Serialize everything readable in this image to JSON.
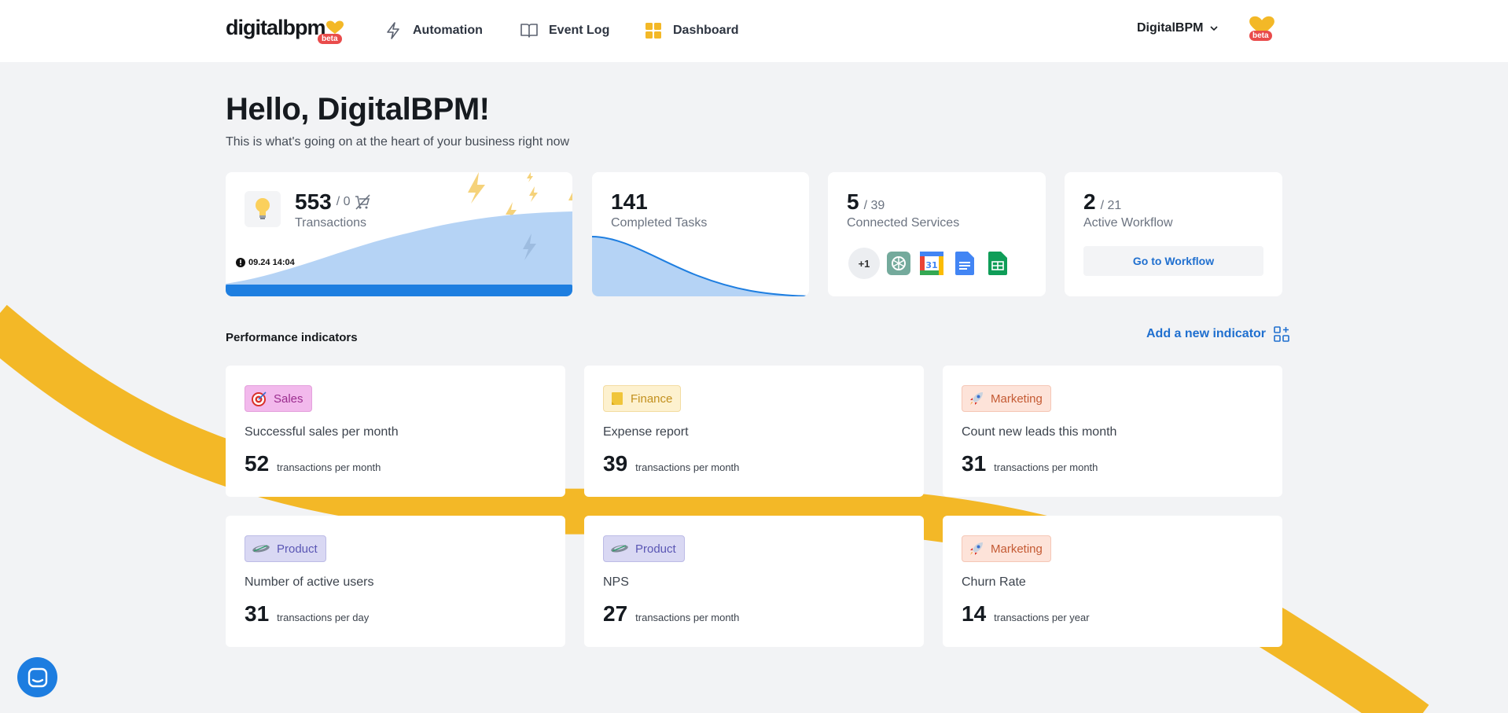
{
  "header": {
    "logo_text": "digitalbpm",
    "logo_badge": "beta",
    "nav": [
      {
        "label": "Automation",
        "icon": "lightning-icon"
      },
      {
        "label": "Event Log",
        "icon": "book-icon"
      },
      {
        "label": "Dashboard",
        "icon": "grid-icon"
      }
    ],
    "account_name": "DigitalBPM",
    "avatar_badge": "beta"
  },
  "greeting": {
    "title": "Hello, DigitalBPM!",
    "subtitle": "This is what's going on at the heart of your business right now"
  },
  "stats": {
    "transactions": {
      "value": "553",
      "total": "/ 0",
      "label": "Transactions",
      "timestamp": "09.24 14:04"
    },
    "tasks": {
      "value": "141",
      "label": "Completed Tasks"
    },
    "services": {
      "value": "5",
      "total": "/ 39",
      "label": "Connected Services",
      "more": "+1"
    },
    "workflow": {
      "value": "2",
      "total": "/ 21",
      "label": "Active Workflow",
      "button": "Go to Workflow"
    }
  },
  "performance": {
    "title": "Performance indicators",
    "add_label": "Add a new indicator",
    "cards": [
      {
        "tag": "Sales",
        "title": "Successful sales per month",
        "value": "52",
        "unit": "transactions per month"
      },
      {
        "tag": "Finance",
        "title": "Expense report",
        "value": "39",
        "unit": "transactions per month"
      },
      {
        "tag": "Marketing",
        "title": "Count new leads this month",
        "value": "31",
        "unit": "transactions per month"
      },
      {
        "tag": "Product",
        "title": "Number of active users",
        "value": "31",
        "unit": "transactions per day"
      },
      {
        "tag": "Product",
        "title": "NPS",
        "value": "27",
        "unit": "transactions per month"
      },
      {
        "tag": "Marketing",
        "title": "Churn Rate",
        "value": "14",
        "unit": "transactions per year"
      }
    ]
  },
  "colors": {
    "accent": "#1f6fcf",
    "ribbon": "#f3b827",
    "chart_fill": "#b5d3f5"
  }
}
